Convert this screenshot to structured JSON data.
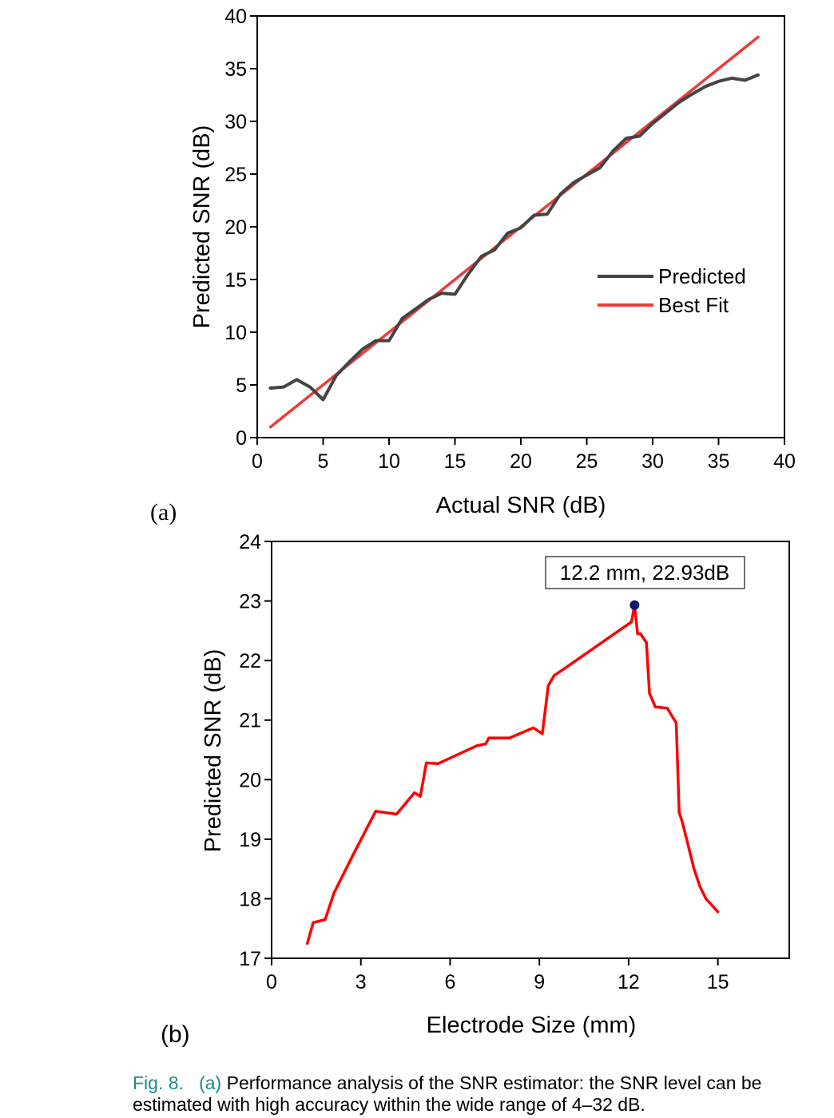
{
  "chart_data": [
    {
      "type": "line",
      "panel_label": "(a)",
      "xlabel": "Actual SNR (dB)",
      "ylabel": "Predicted SNR (dB)",
      "xlim": [
        0,
        40
      ],
      "ylim": [
        0,
        40
      ],
      "xticks": [
        "0",
        "5",
        "10",
        "15",
        "20",
        "25",
        "30",
        "35",
        "40"
      ],
      "yticks": [
        "0",
        "5",
        "10",
        "15",
        "20",
        "25",
        "30",
        "35",
        "40"
      ],
      "legend_position": "center-right",
      "series": [
        {
          "name": "Predicted",
          "color": "#444444",
          "x": [
            1,
            2,
            3,
            4,
            5,
            6,
            7,
            8,
            9,
            10,
            11,
            12,
            13,
            14,
            15,
            16,
            17,
            18,
            19,
            20,
            21,
            22,
            23,
            24,
            25,
            26,
            27,
            28,
            29,
            30,
            31,
            32,
            33,
            34,
            35,
            36,
            37,
            38
          ],
          "y": [
            4.7,
            4.8,
            5.5,
            4.8,
            3.6,
            5.9,
            7.2,
            8.4,
            9.2,
            9.2,
            11.3,
            12.2,
            13.1,
            13.7,
            13.6,
            15.5,
            17.2,
            17.8,
            19.4,
            19.9,
            21.1,
            21.2,
            23.1,
            24.2,
            24.9,
            25.6,
            27.2,
            28.4,
            28.6,
            29.8,
            30.8,
            31.8,
            32.6,
            33.3,
            33.8,
            34.1,
            33.9,
            34.4
          ]
        },
        {
          "name": "Best Fit",
          "color": "#ee3a3a",
          "x": [
            1,
            38
          ],
          "y": [
            1,
            38
          ]
        }
      ]
    },
    {
      "type": "line",
      "panel_label": "(b)",
      "xlabel": "Electrode Size (mm)",
      "ylabel": "Predicted SNR (dB)",
      "xlim": [
        0,
        17.4
      ],
      "ylim": [
        17,
        24
      ],
      "xticks": [
        "0",
        "3",
        "6",
        "9",
        "12",
        "15"
      ],
      "xtick_values": [
        0,
        3,
        6,
        9,
        12,
        15
      ],
      "yticks": [
        "17",
        "18",
        "19",
        "20",
        "21",
        "22",
        "23",
        "24"
      ],
      "series": [
        {
          "color": "#ff0000",
          "x": [
            1.2,
            1.4,
            1.8,
            2.1,
            2.7,
            3.5,
            4.2,
            4.8,
            5.0,
            5.2,
            5.6,
            6.9,
            7.2,
            7.3,
            8.0,
            8.8,
            9.1,
            9.3,
            9.5,
            9.8,
            12.1,
            12.2,
            12.3,
            12.4,
            12.6,
            12.7,
            12.9,
            13.3,
            13.6,
            13.7,
            13.8,
            14.2,
            14.4,
            14.6,
            15.0
          ],
          "y": [
            17.25,
            17.6,
            17.65,
            18.1,
            18.7,
            19.47,
            19.42,
            19.78,
            19.72,
            20.28,
            20.27,
            20.57,
            20.6,
            20.7,
            20.7,
            20.87,
            20.77,
            21.58,
            21.75,
            21.85,
            22.65,
            22.93,
            22.45,
            22.45,
            22.3,
            21.45,
            21.22,
            21.2,
            20.95,
            19.45,
            19.3,
            18.5,
            18.2,
            18.0,
            17.78
          ]
        }
      ],
      "annotation": {
        "text": "12.2 mm, 22.93dB",
        "x": 12.2,
        "y": 22.93,
        "marker_color": "#0b1a6e"
      }
    }
  ],
  "caption": {
    "fig": "Fig. 8.",
    "sub": "(a)",
    "text": "Performance analysis of the SNR estimator: the SNR level can be estimated with high accuracy within the wide range of 4–32 dB."
  }
}
